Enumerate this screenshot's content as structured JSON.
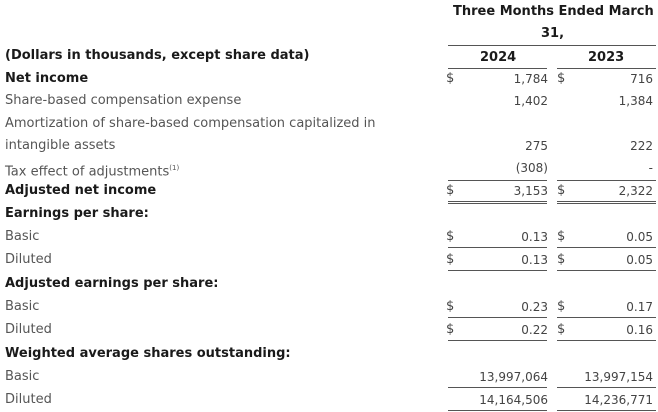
{
  "header": {
    "period_line1": "Three Months Ended March",
    "period_line2": "31,",
    "col_2024": "2024",
    "col_2023": "2023"
  },
  "dollar_sign": "$",
  "rows": [
    {
      "label": "(Dollars in thousands, except share data)"
    },
    {
      "label": "Net income",
      "v2024": "1,784",
      "v2023": "716"
    },
    {
      "label": "Share-based compensation expense",
      "v2024": "1,402",
      "v2023": "1,384"
    },
    {
      "label": "Amortization of share-based compensation capitalized in"
    },
    {
      "label": "intangible assets",
      "v2024": "275",
      "v2023": "222"
    },
    {
      "label": "Tax effect of adjustments",
      "footnote": "(1)",
      "v2024": "(308)",
      "v2023": "-"
    },
    {
      "label": "Adjusted net income",
      "v2024": "3,153",
      "v2023": "2,322"
    },
    {
      "label": "Earnings per share:"
    },
    {
      "label": "Basic",
      "v2024": "0.13",
      "v2023": "0.05"
    },
    {
      "label": "Diluted",
      "v2024": "0.13",
      "v2023": "0.05"
    },
    {
      "label": "Adjusted earnings per share:"
    },
    {
      "label": "Basic",
      "v2024": "0.23",
      "v2023": "0.17"
    },
    {
      "label": "Diluted",
      "v2024": "0.22",
      "v2023": "0.16"
    },
    {
      "label": "Weighted average shares outstanding:"
    },
    {
      "label": "Basic",
      "v2024": "13,997,064",
      "v2023": "13,997,154"
    },
    {
      "label": "Diluted",
      "v2024": "14,164,506",
      "v2023": "14,236,771"
    }
  ]
}
